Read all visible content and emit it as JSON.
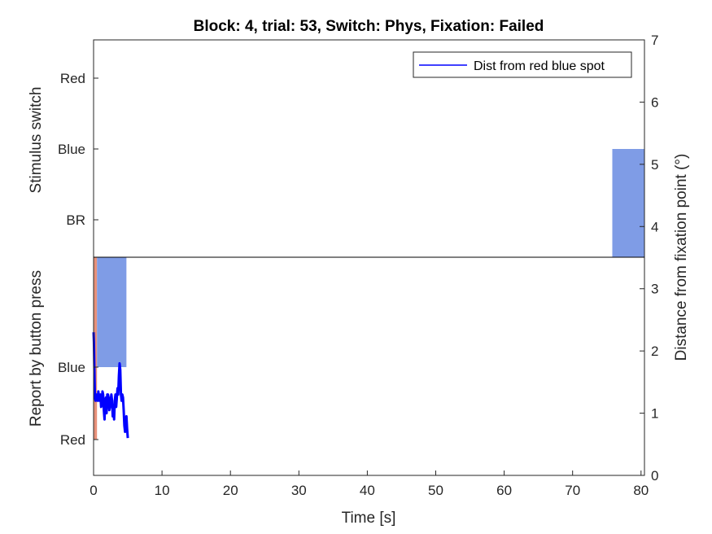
{
  "chart_data": {
    "type": "line",
    "title": "Block: 4, trial: 53, Switch: Phys, Fixation: Failed",
    "xlabel": "Time [s]",
    "ylabel_left_top": "Stimulus switch",
    "ylabel_left_bottom": "Report by button press",
    "ylabel_right": "Distance from fixation point (°)",
    "xlim": [
      0,
      80.5
    ],
    "ylim_right": [
      0,
      7
    ],
    "x_ticks": [
      "0",
      "10",
      "20",
      "30",
      "40",
      "50",
      "60",
      "70",
      "80"
    ],
    "y_right_ticks": [
      "0",
      "1",
      "2",
      "3",
      "4",
      "5",
      "6",
      "7"
    ],
    "stimulus_ticks": [
      "Red",
      "Blue",
      "BR"
    ],
    "report_ticks": [
      "Blue",
      "Red"
    ],
    "grid": false,
    "legend_position": "top-right",
    "colors": {
      "blue_state": "#7f9ce6",
      "red_state": "#e8917a",
      "distance_line": "#0000ff",
      "axis": "#262626"
    },
    "stimulus_blocks": [
      {
        "state": "Blue",
        "x_start": 75.8,
        "x_end": 80.5
      }
    ],
    "report_blocks": [
      {
        "state": "Red",
        "x_start": 0,
        "x_end": 0.5
      },
      {
        "state": "Blue",
        "x_start": 0.5,
        "x_end": 4.8
      }
    ],
    "series": [
      {
        "name": "Dist from red blue spot",
        "x": [
          0,
          0.05,
          0.1,
          0.15,
          0.2,
          0.3,
          0.4,
          0.5,
          0.6,
          0.7,
          0.8,
          0.9,
          1.0,
          1.1,
          1.2,
          1.3,
          1.4,
          1.5,
          1.6,
          1.7,
          1.8,
          1.9,
          2.0,
          2.1,
          2.2,
          2.3,
          2.4,
          2.5,
          2.6,
          2.7,
          2.8,
          2.9,
          3.0,
          3.1,
          3.2,
          3.3,
          3.4,
          3.5,
          3.6,
          3.7,
          3.8,
          3.9,
          4.0,
          4.1,
          4.2,
          4.3,
          4.4,
          4.5,
          4.6,
          4.7,
          4.8,
          4.9,
          5.0
        ],
        "y": [
          2.3,
          2.15,
          1.8,
          1.5,
          1.25,
          1.2,
          1.3,
          1.25,
          1.2,
          1.35,
          1.2,
          1.25,
          1.3,
          1.1,
          1.15,
          1.35,
          1.3,
          1.05,
          0.9,
          1.2,
          1.25,
          1.0,
          1.3,
          1.3,
          1.25,
          1.05,
          1.1,
          1.2,
          1.3,
          1.2,
          0.95,
          1.05,
          0.9,
          1.2,
          1.3,
          1.1,
          1.25,
          1.4,
          1.3,
          1.6,
          1.8,
          1.7,
          1.3,
          1.2,
          1.3,
          1.25,
          1.05,
          0.8,
          0.7,
          0.9,
          0.95,
          0.75,
          0.6
        ]
      }
    ]
  }
}
